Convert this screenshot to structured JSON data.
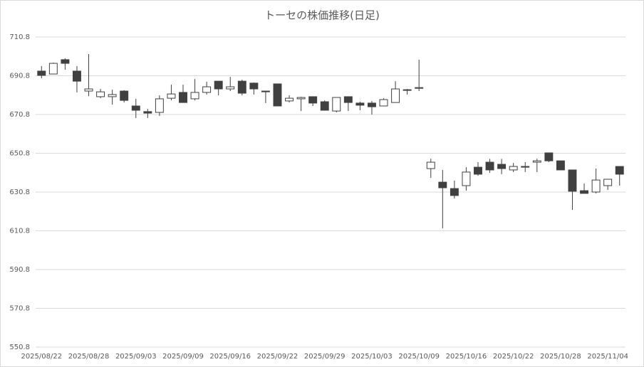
{
  "chart_data": {
    "type": "candlestick",
    "title": "トーセの株価推移(日足)",
    "categories": [
      "2025/08/22",
      null,
      null,
      null,
      "2025/08/28",
      null,
      null,
      null,
      "2025/09/03",
      null,
      null,
      null,
      "2025/09/09",
      null,
      null,
      null,
      "2025/09/16",
      null,
      null,
      null,
      "2025/09/22",
      null,
      null,
      null,
      "2025/09/29",
      null,
      null,
      null,
      "2025/10/03",
      null,
      null,
      null,
      "2025/10/09",
      null,
      null,
      null,
      "2025/10/16",
      null,
      null,
      null,
      "2025/10/22",
      null,
      null,
      null,
      "2025/10/28",
      null,
      null,
      null,
      "2025/11/04",
      null
    ],
    "open": [
      693.2,
      691.7,
      699.1,
      693.2,
      682.9,
      680.0,
      680.0,
      682.9,
      675.2,
      672.3,
      671.9,
      679.2,
      682.2,
      678.9,
      682.2,
      688.0,
      684.0,
      688.0,
      687.0,
      682.9,
      686.6,
      677.8,
      678.9,
      680.0,
      677.4,
      672.6,
      680.0,
      676.7,
      676.7,
      675.2,
      677.0,
      683.3,
      684.3,
      642.9,
      635.9,
      632.6,
      634.1,
      643.6,
      646.2,
      645.1,
      642.2,
      644.0,
      646.2,
      651.0,
      646.9,
      642.2,
      631.5,
      630.8,
      634.1,
      644.0
    ],
    "high": [
      695.8,
      697.6,
      699.8,
      695.8,
      702.0,
      684.0,
      683.6,
      683.3,
      678.9,
      673.7,
      680.7,
      686.2,
      686.2,
      689.1,
      687.7,
      688.0,
      690.2,
      688.8,
      687.3,
      682.9,
      686.6,
      680.7,
      680.0,
      680.0,
      678.1,
      679.6,
      680.0,
      677.4,
      677.8,
      679.2,
      688.0,
      684.0,
      699.1,
      648.0,
      642.2,
      636.7,
      643.6,
      646.2,
      647.9,
      647.9,
      645.8,
      646.2,
      648.0,
      651.0,
      646.9,
      642.2,
      635.2,
      642.9,
      637.4,
      644.0
    ],
    "low": [
      689.5,
      691.7,
      693.9,
      682.2,
      680.3,
      679.2,
      675.9,
      677.0,
      669.0,
      669.0,
      670.1,
      678.1,
      677.0,
      678.1,
      681.1,
      680.7,
      682.9,
      680.7,
      681.1,
      676.7,
      675.2,
      677.0,
      672.6,
      675.2,
      673.0,
      671.9,
      672.6,
      673.0,
      670.8,
      675.2,
      677.0,
      681.1,
      682.9,
      638.1,
      612.1,
      627.5,
      631.5,
      639.2,
      640.7,
      640.0,
      641.1,
      641.1,
      641.1,
      646.2,
      642.2,
      621.6,
      630.1,
      630.1,
      631.9,
      634.1
    ],
    "close": [
      691.0,
      697.2,
      697.2,
      688.0,
      684.0,
      682.5,
      681.1,
      678.1,
      673.0,
      671.5,
      678.9,
      681.4,
      677.0,
      682.2,
      685.1,
      684.0,
      685.1,
      681.8,
      684.0,
      682.5,
      675.2,
      679.2,
      679.6,
      676.7,
      673.0,
      679.6,
      677.0,
      675.6,
      674.8,
      678.5,
      684.0,
      683.6,
      684.7,
      646.2,
      633.0,
      629.0,
      641.1,
      640.0,
      642.2,
      642.9,
      644.0,
      643.6,
      646.9,
      646.9,
      642.2,
      631.2,
      630.1,
      637.0,
      637.4,
      640.0
    ],
    "up_color": "#ffffff",
    "down_color": "#404040",
    "edge_color": "#404040",
    "ylim": [
      550.8,
      710.8
    ],
    "yticks": [
      550.8,
      570.8,
      590.8,
      610.8,
      630.8,
      650.8,
      670.8,
      690.8,
      710.8
    ],
    "grid": true
  }
}
